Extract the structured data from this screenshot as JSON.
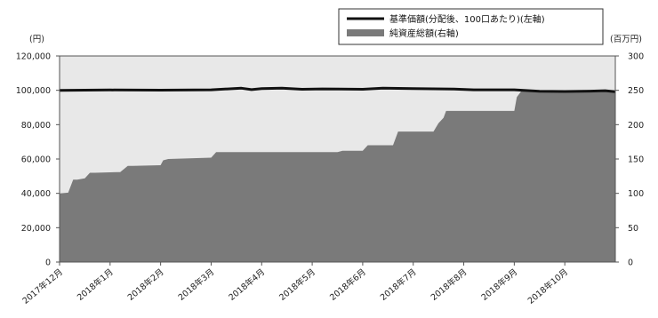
{
  "chart_data": {
    "type": "area",
    "title": "",
    "left_axis": {
      "unit_label": "(円)",
      "ylim": [
        0,
        120000
      ],
      "tick_values": [
        0,
        20000,
        40000,
        60000,
        80000,
        100000,
        120000
      ],
      "tick_labels": [
        "0",
        "20,000",
        "40,000",
        "60,000",
        "80,000",
        "100,000",
        "120,000"
      ]
    },
    "right_axis": {
      "unit_label": "(百万円)",
      "ylim": [
        0,
        300
      ],
      "tick_values": [
        0,
        50,
        100,
        150,
        200,
        250,
        300
      ],
      "tick_labels": [
        "0",
        "50",
        "100",
        "150",
        "200",
        "250",
        "300"
      ]
    },
    "x_axis": {
      "categories": [
        "2017年12月",
        "2018年1月",
        "2018年2月",
        "2018年3月",
        "2018年4月",
        "2018年5月",
        "2018年6月",
        "2018年7月",
        "2018年8月",
        "2018年9月",
        "2018年10月"
      ],
      "range": [
        0,
        11
      ]
    },
    "legend": {
      "placement": "top-right",
      "entries": [
        "基準価額(分配後、100口あたり)(左軸)",
        "純資産総額(右軸)"
      ]
    },
    "series": [
      {
        "name": "基準価額(分配後、100口あたり)(左軸)",
        "axis": "left",
        "style": "line",
        "color": "#111111",
        "x": [
          0,
          1,
          2,
          3,
          3.6,
          3.8,
          4,
          4.4,
          4.8,
          5.2,
          6,
          6.4,
          7,
          7.8,
          8.2,
          9,
          9.5,
          10,
          10.5,
          10.8,
          11
        ],
        "y": [
          100000,
          100200,
          100100,
          100300,
          101200,
          100400,
          101000,
          101300,
          100600,
          100800,
          100600,
          101200,
          101000,
          100700,
          100300,
          100300,
          99400,
          99300,
          99500,
          99800,
          99200
        ]
      },
      {
        "name": "純資産総額(右軸)",
        "axis": "right",
        "style": "area",
        "color": "#7a7a7a",
        "x": [
          0,
          0.17,
          0.27,
          0.35,
          0.5,
          0.6,
          0.7,
          1.2,
          1.35,
          1.45,
          2.0,
          2.05,
          2.15,
          3.0,
          3.1,
          5.5,
          5.6,
          6.0,
          6.1,
          6.6,
          6.7,
          7.4,
          7.5,
          7.6,
          7.65,
          8.5,
          9.0,
          9.05,
          9.15,
          11
        ],
        "y": [
          100,
          101,
          120,
          120,
          122,
          130,
          130,
          131,
          140,
          140,
          141,
          148,
          150,
          152,
          160,
          160,
          162,
          162,
          170,
          170,
          190,
          190,
          202,
          210,
          220,
          220,
          220,
          240,
          250,
          248
        ]
      }
    ],
    "grid": false,
    "plot_background": "#e8e8e8"
  }
}
